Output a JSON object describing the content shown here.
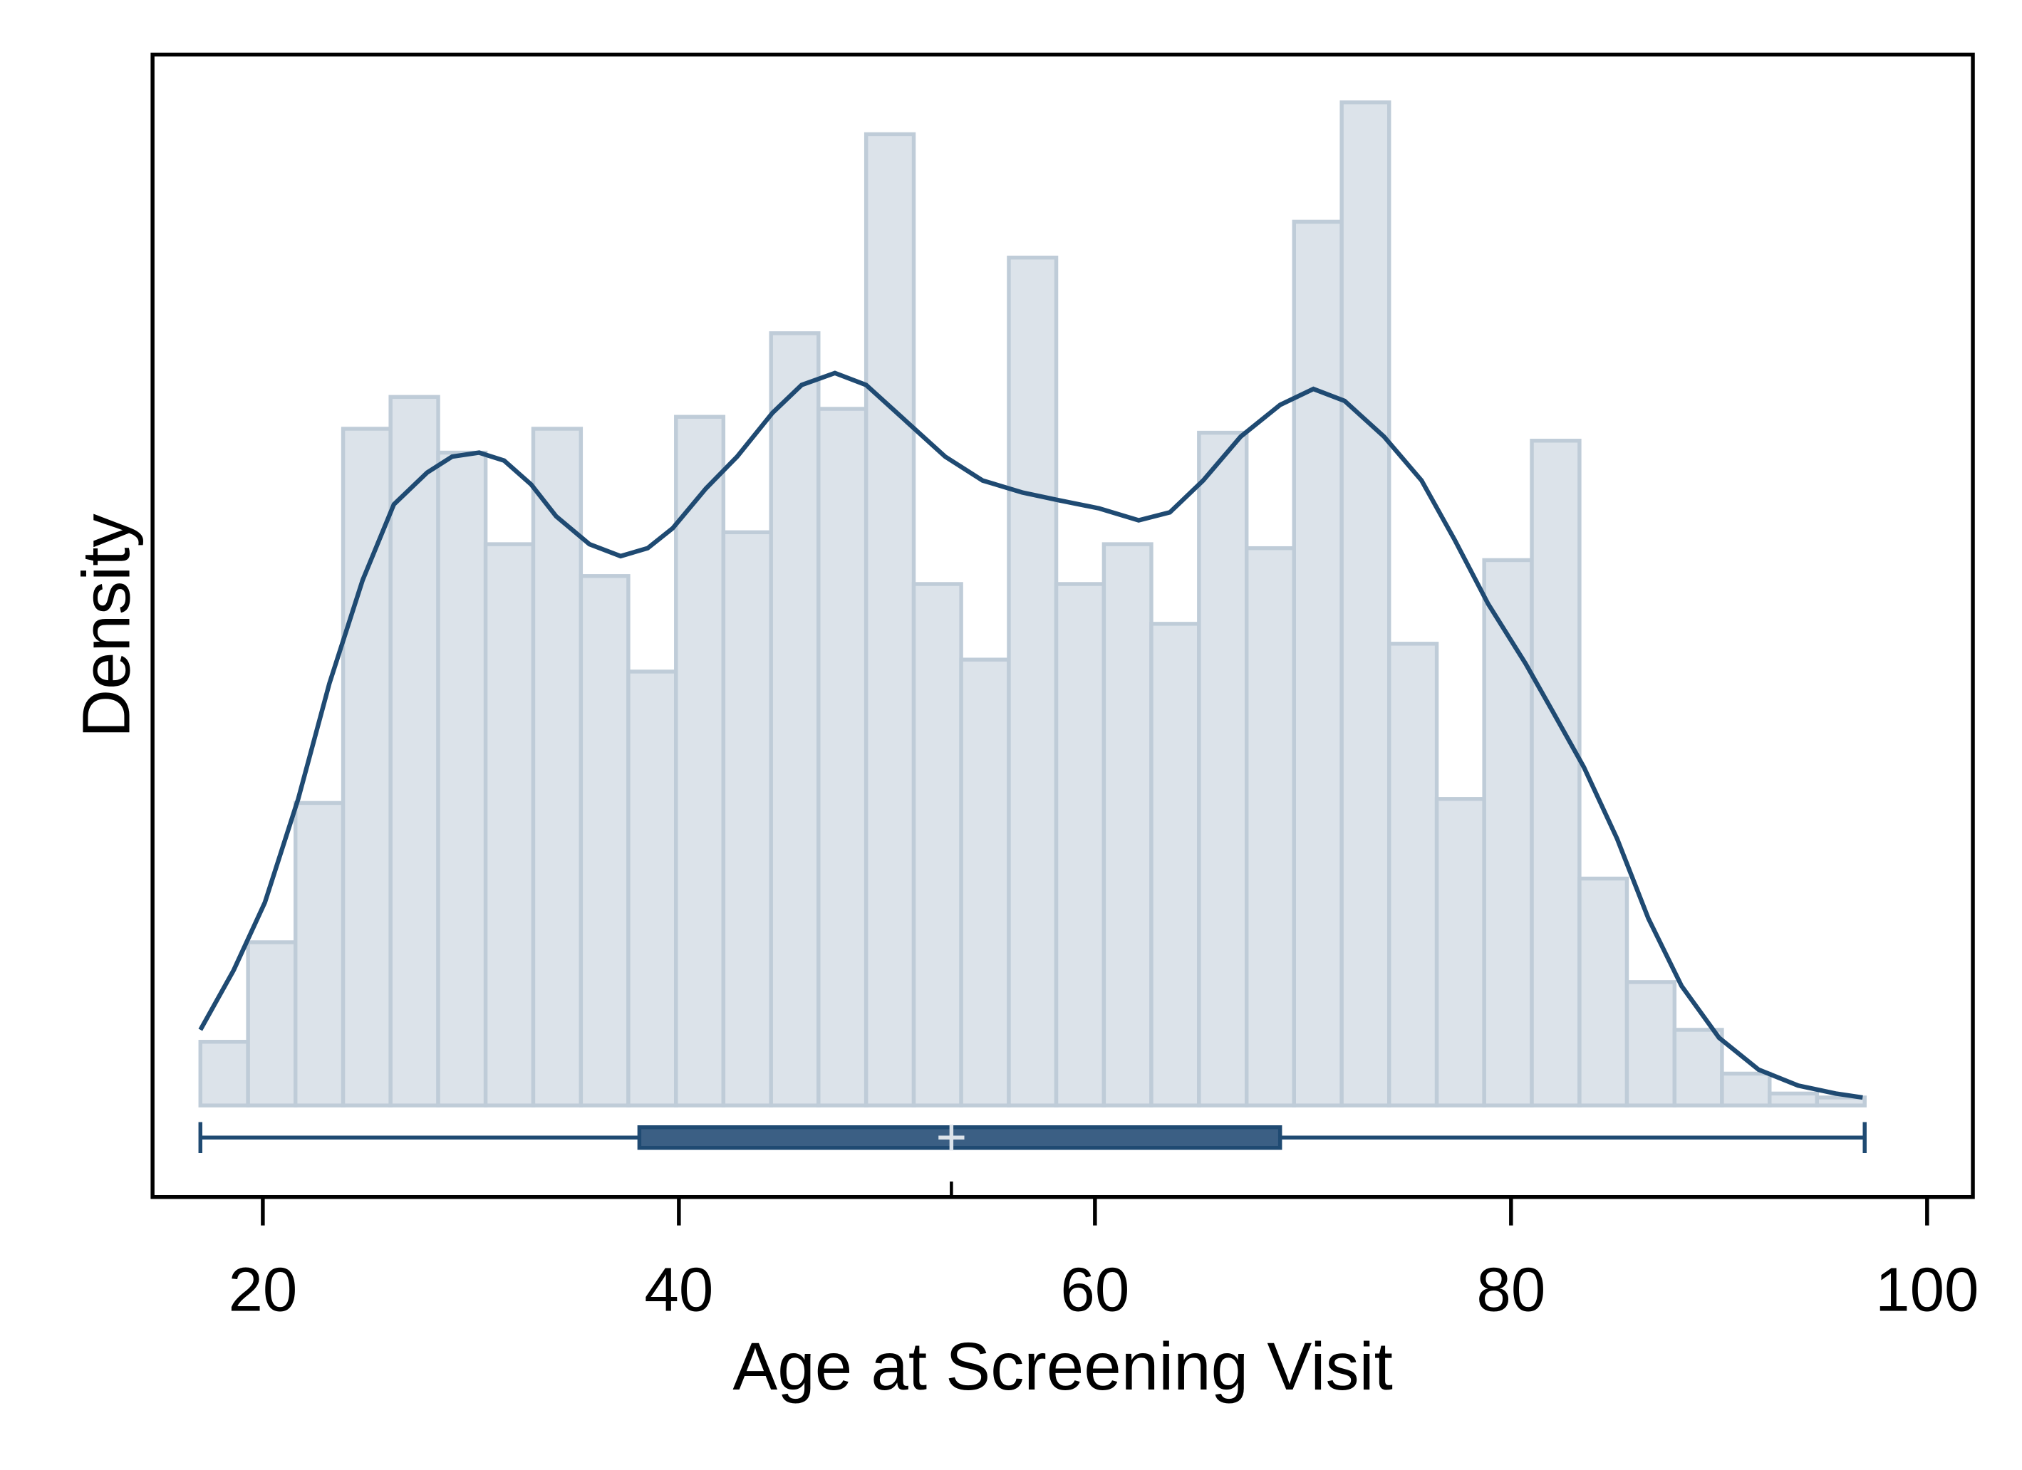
{
  "chart_data": {
    "type": "histogram",
    "xlabel": "Age at Screening Visit",
    "ylabel": "Density",
    "bins": [
      17,
      19.29,
      21.57,
      23.86,
      26.14,
      28.43,
      30.71,
      33,
      35.29,
      37.57,
      39.86,
      42.14,
      44.43,
      46.71,
      49,
      51.29,
      53.57,
      55.86,
      58.14,
      60.43,
      62.71,
      65,
      67.29,
      69.57,
      71.86,
      74.14,
      76.43,
      78.71,
      81,
      83.29,
      85.57,
      87.86,
      90.14,
      92.43,
      94.71,
      97
    ],
    "values": [
      0.0016,
      0.0041,
      0.0076,
      0.017,
      0.0178,
      0.0164,
      0.0141,
      0.017,
      0.0133,
      0.0109,
      0.0173,
      0.0144,
      0.0194,
      0.0175,
      0.0244,
      0.0131,
      0.0112,
      0.0213,
      0.0131,
      0.0141,
      0.0121,
      0.0169,
      0.014,
      0.0222,
      0.0252,
      0.0116,
      0.0077,
      0.0137,
      0.0167,
      0.0057,
      0.0031,
      0.0019,
      0.0008,
      0.0003,
      0.0002
    ],
    "color": "#dce3ea",
    "edgecolor": "#bfccd8",
    "kde": {
      "color": "#1f4a72",
      "x": [
        17.0,
        18.6,
        20.1,
        21.7,
        23.2,
        24.8,
        26.3,
        27.9,
        29.1,
        30.4,
        31.6,
        32.9,
        34.1,
        35.7,
        37.2,
        38.5,
        39.7,
        41.3,
        42.8,
        44.5,
        45.9,
        47.5,
        49.0,
        50.9,
        52.8,
        54.6,
        56.5,
        58.3,
        60.2,
        62.1,
        63.6,
        65.2,
        67.0,
        68.9,
        70.5,
        72.0,
        73.9,
        75.7,
        77.3,
        78.9,
        80.7,
        82.0,
        83.5,
        85.1,
        86.6,
        88.2,
        90.0,
        91.9,
        93.8,
        95.6,
        96.9
      ],
      "y": [
        0.0019,
        0.0034,
        0.0051,
        0.0077,
        0.0106,
        0.0132,
        0.0151,
        0.0159,
        0.0163,
        0.0164,
        0.0162,
        0.0156,
        0.0148,
        0.0141,
        0.0138,
        0.014,
        0.0145,
        0.0155,
        0.0163,
        0.0174,
        0.0181,
        0.0184,
        0.0181,
        0.0172,
        0.0163,
        0.0157,
        0.0154,
        0.0152,
        0.015,
        0.0147,
        0.0149,
        0.0157,
        0.0168,
        0.0176,
        0.018,
        0.0177,
        0.0168,
        0.0157,
        0.0142,
        0.0126,
        0.0111,
        0.0099,
        0.0085,
        0.0067,
        0.0047,
        0.003,
        0.0017,
        0.0009,
        0.0005,
        0.0003,
        0.0002
      ]
    },
    "box": {
      "min": 17,
      "q1": 38.1,
      "median": 53.1,
      "q3": 68.9,
      "max": 97,
      "color": "#3b5f84",
      "edgecolor": "#1f4a72"
    },
    "xlim": [
      14.7,
      102.2
    ],
    "xticks": [
      20,
      40,
      60,
      80,
      100
    ],
    "ylim": [
      -0.0023,
      0.0264
    ]
  }
}
